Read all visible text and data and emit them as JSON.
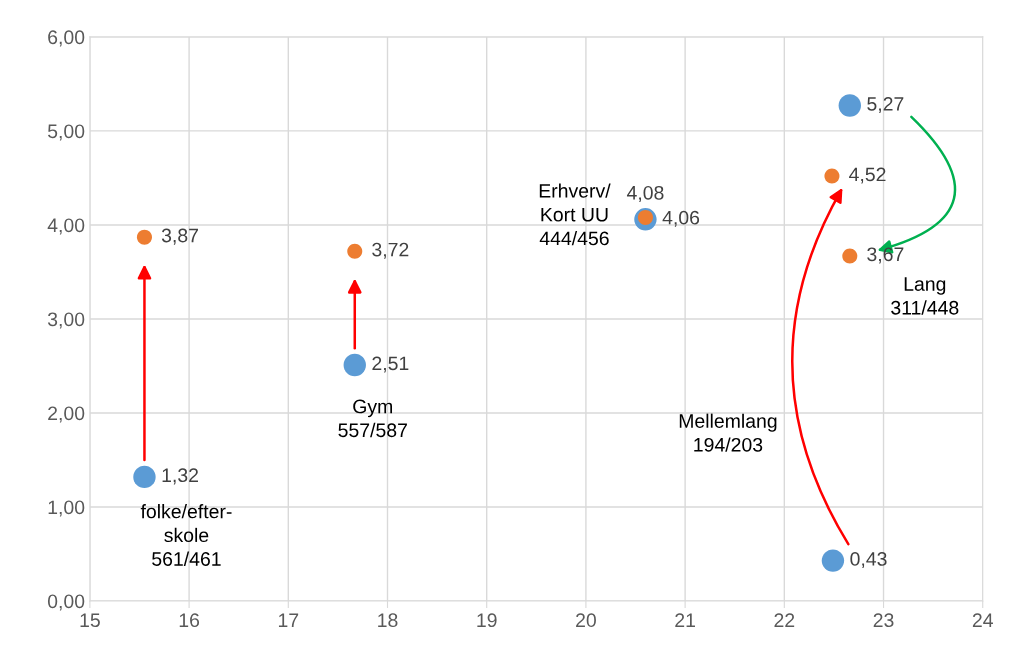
{
  "chart_data": {
    "type": "scatter",
    "series": [
      {
        "color": "#5b9bd5",
        "x": [
          15.55,
          17.67,
          20.6,
          22.66,
          22.49
        ],
        "values": [
          1.32,
          2.51,
          4.06,
          5.27,
          0.43
        ],
        "value_labels": [
          "1,32",
          "2,51",
          "4,06",
          "5,27",
          "0,43"
        ]
      },
      {
        "color": "#ed7d31",
        "x": [
          15.55,
          17.67,
          20.6,
          22.66,
          22.48
        ],
        "values": [
          3.87,
          3.72,
          4.08,
          3.67,
          4.52
        ],
        "value_labels": [
          "3,87",
          "3,72",
          "4,08",
          "3,67",
          "4,52"
        ]
      }
    ],
    "xlim": [
      15,
      24
    ],
    "xticks": [
      15,
      16,
      17,
      18,
      19,
      20,
      21,
      22,
      23,
      24
    ],
    "ylim": [
      0,
      6
    ],
    "yticks": [
      {
        "value": 0,
        "label": "0,00"
      },
      {
        "value": 1,
        "label": "1,00"
      },
      {
        "value": 2,
        "label": "2,00"
      },
      {
        "value": 3,
        "label": "3,00"
      },
      {
        "value": 4,
        "label": "4,00"
      },
      {
        "value": 5,
        "label": "5,00"
      },
      {
        "value": 6,
        "label": "6,00"
      }
    ],
    "grid": true,
    "marker": "circle",
    "legend": false,
    "annotations": [
      "folke/efter-\nskole\n561/461",
      "Gym\n557/587",
      "Erhverv/\nKort UU\n444/456",
      "Lang\n311/448",
      "Mellemlang\n194/203"
    ]
  }
}
